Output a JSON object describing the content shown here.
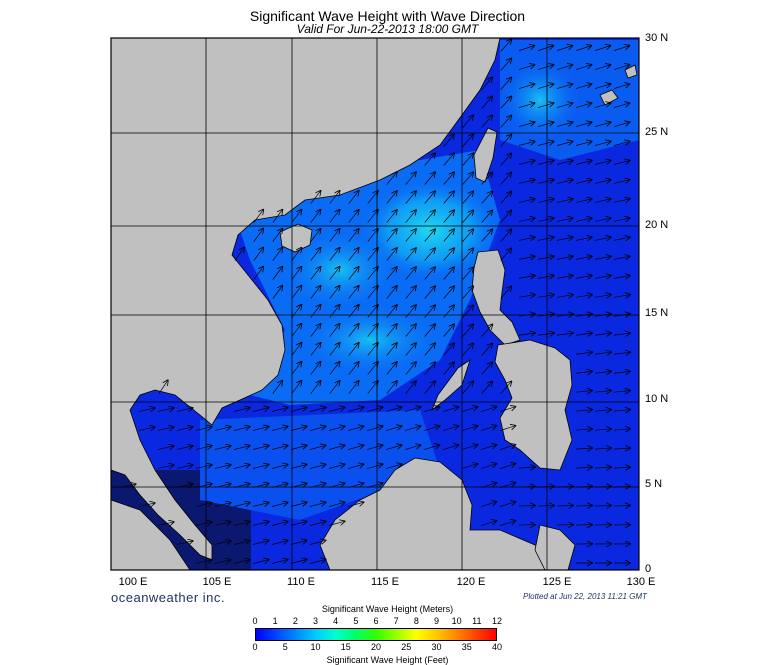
{
  "header": {
    "title": "Significant Wave Height with Wave Direction",
    "subtitle": "Valid For Jun-22-2013 18:00 GMT"
  },
  "map": {
    "lon_range": [
      100,
      130
    ],
    "lat_range": [
      0,
      30
    ],
    "grid_step_degrees": 5,
    "lat_labels": [
      "30 N",
      "25 N",
      "20 N",
      "15 N",
      "10 N",
      "5 N",
      "0"
    ],
    "lon_labels": [
      "100 E",
      "105 E",
      "110 E",
      "115 E",
      "120 E",
      "125 E",
      "130 E"
    ],
    "land_color": "#c0c0c0",
    "background_color": "#111144",
    "wave_direction": "Southwest monsoon swell heading north-northeast in the South China Sea, veering east toward the Pacific east of the Philippines",
    "colors": {
      "low_wave": "#0a28e0",
      "mid_wave": "#0a6cf5",
      "high_wave": "#20d8f0"
    }
  },
  "footer": {
    "brand": "oceanweather inc.",
    "plotted": "Plotted at Jun 22, 2013 11:21 GMT"
  },
  "colorbar": {
    "meters_title": "Significant Wave Height (Meters)",
    "feet_title": "Significant Wave Height (Feet)",
    "meters_ticks": [
      "0",
      "1",
      "2",
      "3",
      "4",
      "5",
      "6",
      "7",
      "8",
      "9",
      "10",
      "11",
      "12"
    ],
    "feet_ticks": [
      "0",
      "5",
      "10",
      "15",
      "20",
      "25",
      "30",
      "35",
      "40"
    ],
    "gradient_colors": [
      "#0000ff",
      "#0044ff",
      "#0088ff",
      "#00ccff",
      "#00ffcc",
      "#00ff66",
      "#33ff00",
      "#99ff00",
      "#ffff00",
      "#ffcc00",
      "#ff8800",
      "#ff4400",
      "#ff0000"
    ]
  }
}
